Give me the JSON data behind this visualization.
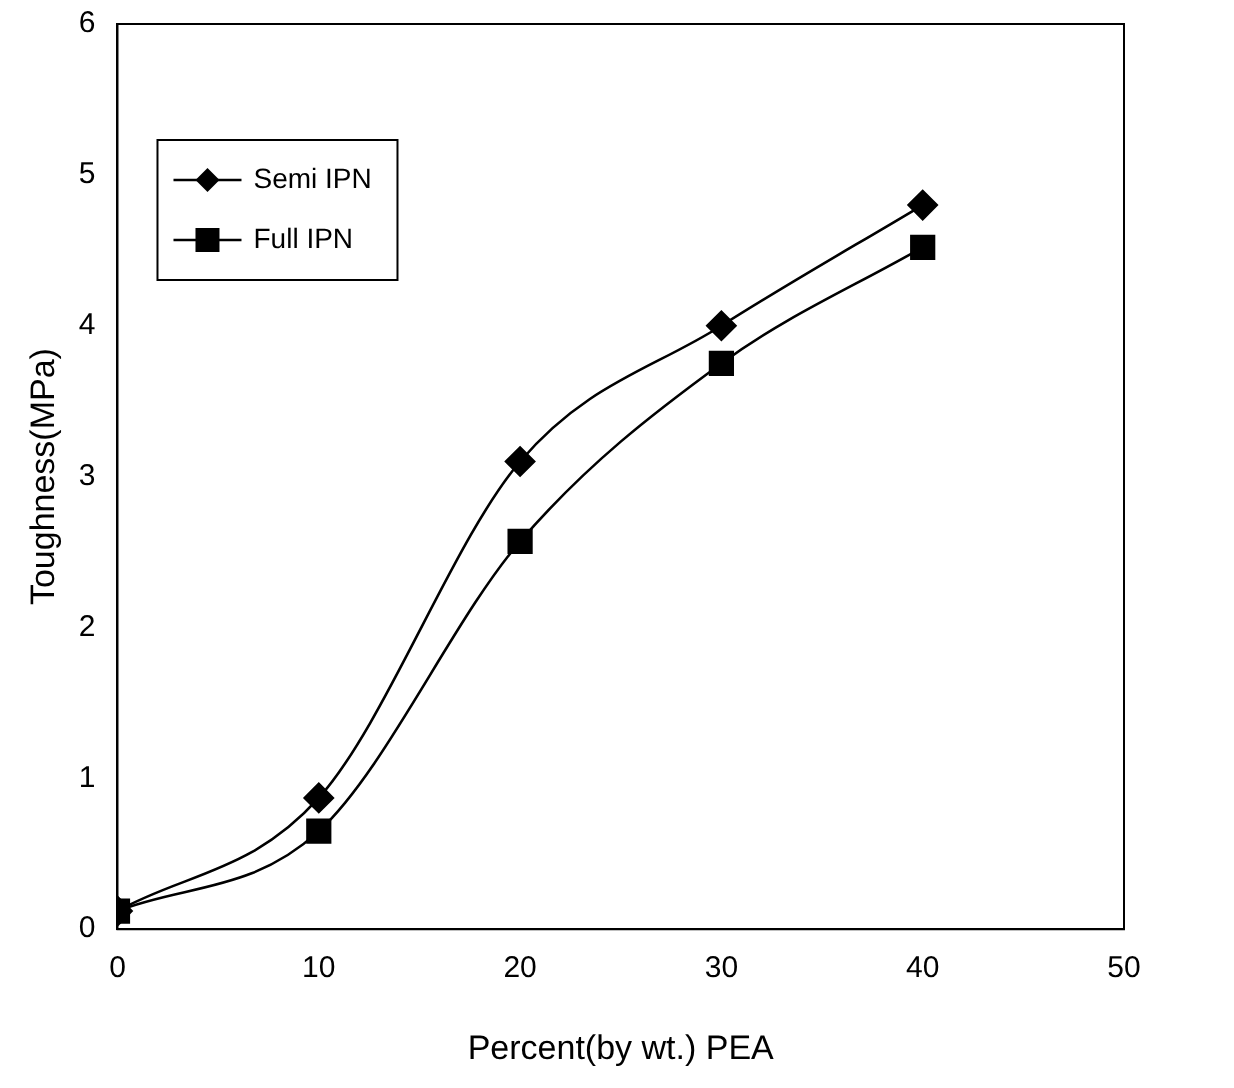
{
  "chart_data": {
    "type": "line",
    "xlabel": "Percent(by wt.) PEA",
    "ylabel": "Toughness(MPa)",
    "x": [
      0,
      10,
      20,
      30,
      40
    ],
    "series": [
      {
        "name": "Semi IPN",
        "color": "#000000",
        "marker": "diamond",
        "values": [
          0.12,
          0.87,
          3.1,
          4.0,
          4.8
        ]
      },
      {
        "name": "Full IPN",
        "color": "#000000",
        "marker": "square",
        "values": [
          0.12,
          0.65,
          2.57,
          3.75,
          4.52
        ]
      }
    ],
    "xlim": [
      0,
      50
    ],
    "xticks": [
      0,
      10,
      20,
      30,
      40,
      50
    ],
    "ylim": [
      0,
      6
    ],
    "yticks": [
      0,
      1,
      2,
      3,
      4,
      5,
      6
    ],
    "grid": false,
    "legend": "top left"
  }
}
